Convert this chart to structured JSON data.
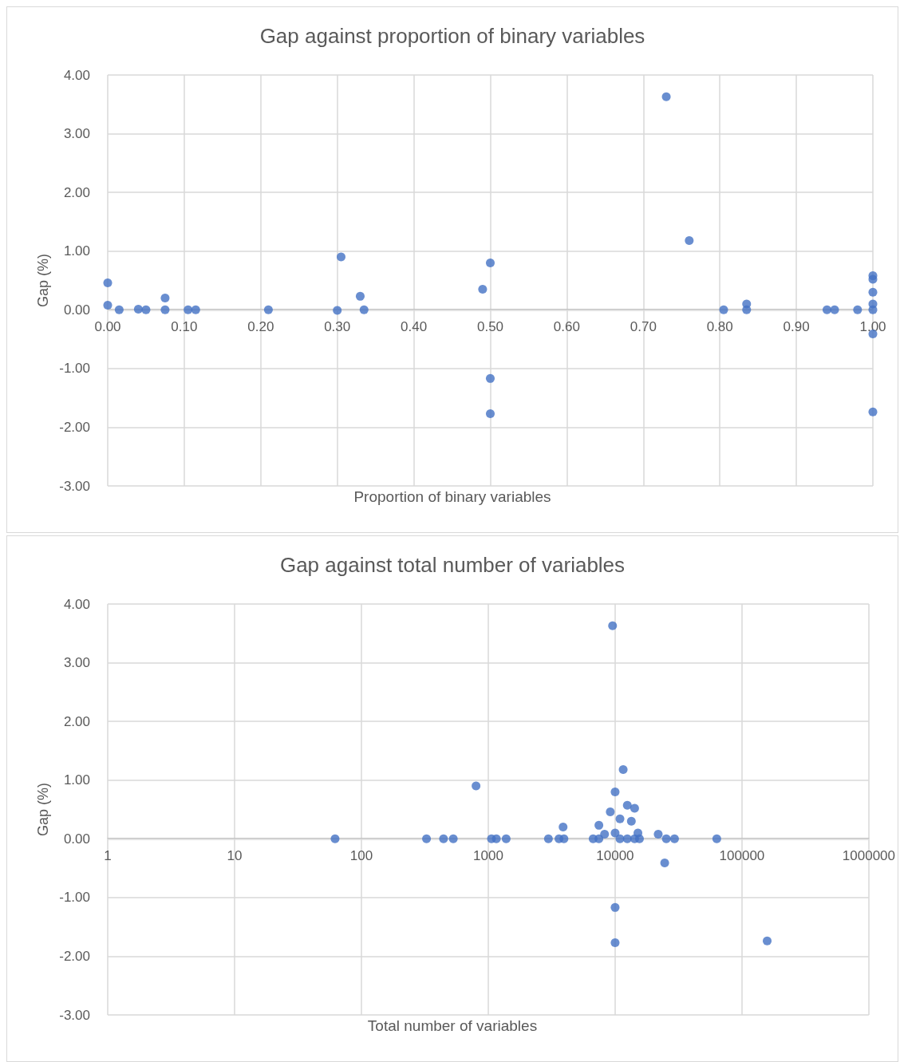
{
  "chart_data": [
    {
      "type": "scatter",
      "title": "Gap against proportion of binary variables",
      "xlabel": "Proportion of binary variables",
      "ylabel": "Gap (%)",
      "marker": "circle",
      "grid": true,
      "series": [
        {
          "color": "#4472c4",
          "x": [
            0,
            0,
            0.015,
            0.04,
            0.05,
            0.075,
            0.075,
            0.105,
            0.115,
            0.21,
            0.3,
            0.305,
            0.33,
            0.335,
            0.49,
            0.5,
            0.5,
            0.5,
            0.73,
            0.76,
            0.805,
            0.835,
            0.835,
            0.94,
            0.95,
            0.98,
            1,
            1,
            1,
            1,
            1,
            1,
            1
          ],
          "values": [
            0.46,
            0.08,
            0,
            0.01,
            0,
            0.2,
            0,
            0,
            0,
            0,
            -0.01,
            0.9,
            0.23,
            0,
            0.35,
            0.8,
            -1.17,
            -1.77,
            3.63,
            1.18,
            0,
            0.1,
            0,
            0,
            0,
            0,
            0.58,
            0.52,
            0.3,
            0.1,
            0,
            -0.41,
            -1.74
          ]
        }
      ],
      "xlim": [
        0,
        1
      ],
      "xticks": [
        {
          "value": 0,
          "label": "0.00"
        },
        {
          "value": 0.1,
          "label": "0.10"
        },
        {
          "value": 0.2,
          "label": "0.20"
        },
        {
          "value": 0.3,
          "label": "0.30"
        },
        {
          "value": 0.4,
          "label": "0.40"
        },
        {
          "value": 0.5,
          "label": "0.50"
        },
        {
          "value": 0.6,
          "label": "0.60"
        },
        {
          "value": 0.7,
          "label": "0.70"
        },
        {
          "value": 0.8,
          "label": "0.80"
        },
        {
          "value": 0.9,
          "label": "0.90"
        },
        {
          "value": 1,
          "label": "1.00"
        }
      ],
      "ylim": [
        -3,
        4
      ],
      "yticks": [
        {
          "value": -3,
          "label": "-3.00"
        },
        {
          "value": -2,
          "label": "-2.00"
        },
        {
          "value": -1,
          "label": "-1.00"
        },
        {
          "value": 0,
          "label": "0.00"
        },
        {
          "value": 1,
          "label": "1.00"
        },
        {
          "value": 2,
          "label": "2.00"
        },
        {
          "value": 3,
          "label": "3.00"
        },
        {
          "value": 4,
          "label": "4.00"
        }
      ]
    },
    {
      "type": "scatter",
      "title": "Gap against total number of variables",
      "xlabel": "Total number of variables",
      "ylabel": "Gap (%)",
      "marker": "circle",
      "grid": true,
      "log": "x",
      "series": [
        {
          "color": "#4472c4",
          "x": [
            62,
            326,
            444,
            530,
            801,
            1060,
            1158,
            1384,
            2980,
            3610,
            3950,
            3890,
            6710,
            7450,
            7450,
            8260,
            9160,
            9550,
            10000,
            10000,
            10000,
            10000,
            10920,
            10920,
            11580,
            12480,
            12480,
            13430,
            14250,
            14250,
            15130,
            15560,
            21870,
            24600,
            25330,
            29400,
            63300,
            158000
          ],
          "values": [
            0,
            0,
            0,
            0,
            0.9,
            0,
            0,
            0,
            0,
            0,
            0,
            0.2,
            0,
            0,
            0.23,
            0.08,
            0.46,
            3.63,
            0.8,
            0.1,
            -1.17,
            -1.77,
            0.34,
            0,
            1.18,
            0.57,
            0,
            0.3,
            0.52,
            0,
            0.1,
            0,
            0.08,
            -0.41,
            0,
            0,
            0,
            -1.74
          ]
        }
      ],
      "xlim": [
        1,
        1000000
      ],
      "xticks": [
        1,
        10,
        100,
        1000,
        10000,
        100000,
        1000000
      ],
      "ylim": [
        -3,
        4
      ],
      "yticks": [
        {
          "value": -3,
          "label": "-3.00"
        },
        {
          "value": -2,
          "label": "-2.00"
        },
        {
          "value": -1,
          "label": "-1.00"
        },
        {
          "value": 0,
          "label": "0.00"
        },
        {
          "value": 1,
          "label": "1.00"
        },
        {
          "value": 2,
          "label": "2.00"
        },
        {
          "value": 3,
          "label": "3.00"
        },
        {
          "value": 4,
          "label": "4.00"
        }
      ]
    }
  ]
}
